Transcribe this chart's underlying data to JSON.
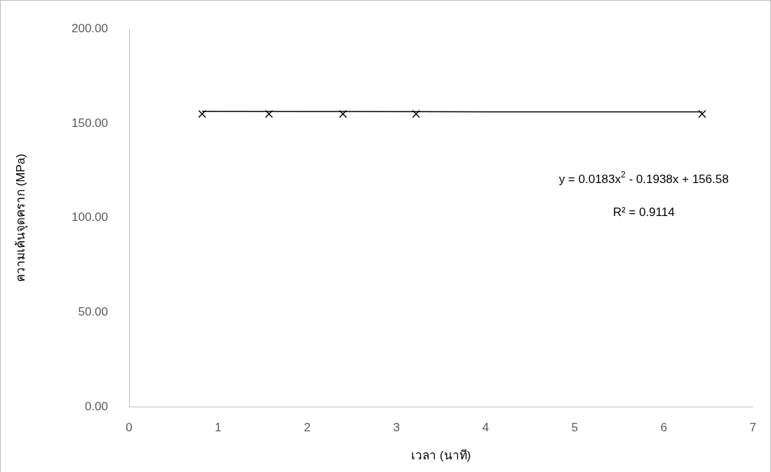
{
  "chart_data": {
    "type": "scatter",
    "xlabel": "เวลา (นาที)",
    "ylabel": "ความเค้นจุดคราก (MPa)",
    "x": [
      0.82,
      1.57,
      2.4,
      3.22,
      6.43
    ],
    "series": [
      {
        "color": "#000000",
        "marker": "cross",
        "values": [
          155,
          155,
          155,
          155,
          155
        ]
      },
      {
        "type": "line",
        "color": "#000000",
        "line_style": "solid",
        "marker": "none",
        "x": [
          0.82,
          2,
          4,
          6.43
        ],
        "values": [
          156.4,
          156.3,
          156.1,
          156.1
        ]
      }
    ],
    "xlim": [
      0,
      7
    ],
    "xticks": [
      0,
      1,
      2,
      3,
      4,
      5,
      6,
      7
    ],
    "ylim": [
      0,
      200
    ],
    "yticks": [
      {
        "value": 0,
        "label": "0.00"
      },
      {
        "value": 50,
        "label": "50.00"
      },
      {
        "value": 100,
        "label": "100.00"
      },
      {
        "value": 150,
        "label": "150.00"
      },
      {
        "value": 200,
        "label": "200.00"
      }
    ],
    "grid": false,
    "legend": false,
    "annotations": [
      "y = 0.0183x$^{2}$ - 0.1938x + 156.58",
      "R² = 0.9114"
    ]
  }
}
